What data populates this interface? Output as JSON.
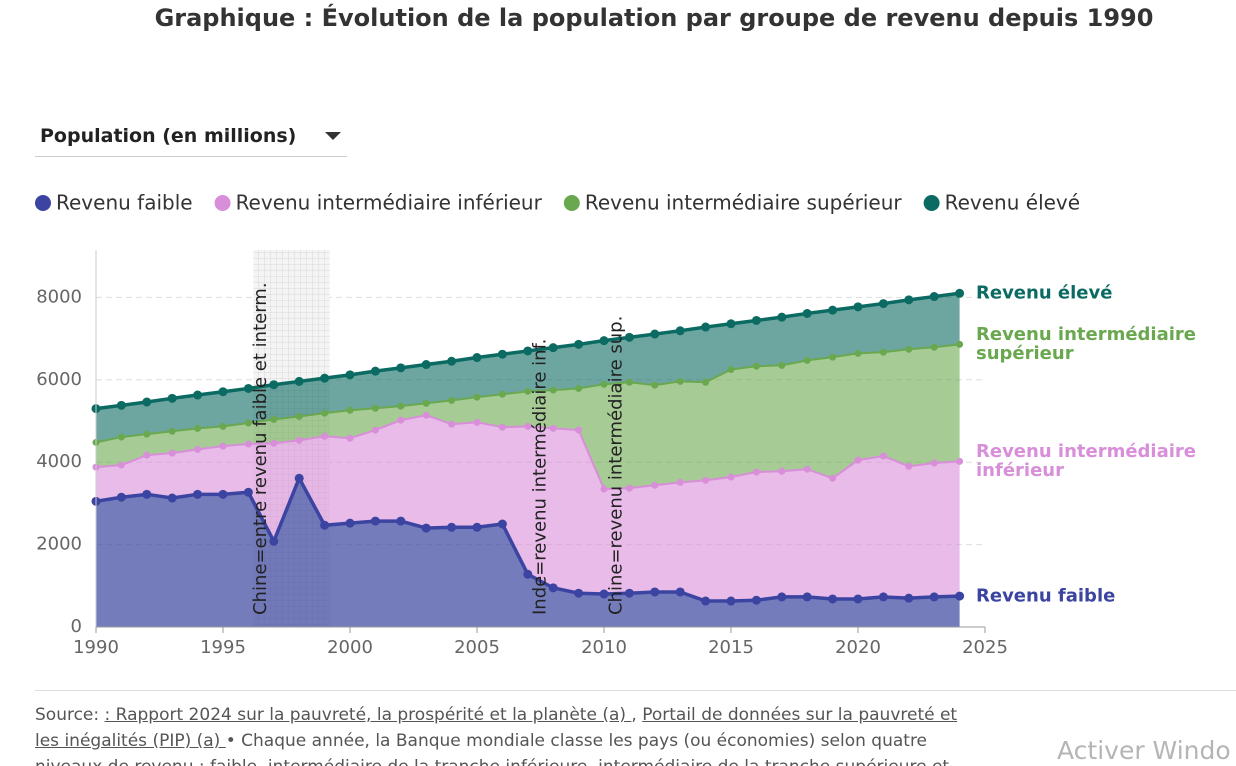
{
  "chart_data": {
    "type": "stacked-area",
    "title": "Graphique : Évolution de la population par groupe de revenu depuis 1990",
    "selector": "Population (en millions)",
    "x": [
      1990,
      1991,
      1992,
      1993,
      1994,
      1995,
      1996,
      1997,
      1998,
      1999,
      2000,
      2001,
      2002,
      2003,
      2004,
      2005,
      2006,
      2007,
      2008,
      2009,
      2010,
      2011,
      2012,
      2013,
      2014,
      2015,
      2016,
      2017,
      2018,
      2019,
      2020,
      2021,
      2022,
      2023,
      2024
    ],
    "series": [
      {
        "name": "Revenu faible",
        "color": "#3b44a0",
        "values": [
          3050,
          3150,
          3220,
          3130,
          3220,
          3220,
          3270,
          2080,
          3610,
          2470,
          2520,
          2570,
          2570,
          2400,
          2420,
          2420,
          2500,
          1280,
          950,
          820,
          800,
          820,
          850,
          850,
          630,
          630,
          650,
          730,
          730,
          680,
          680,
          730,
          700,
          730,
          750
        ]
      },
      {
        "name": "Revenu intermédiaire inférieur",
        "color": "#d98ed9",
        "values": [
          830,
          780,
          950,
          1090,
          1090,
          1170,
          1170,
          2380,
          920,
          2160,
          2060,
          2210,
          2450,
          2740,
          2500,
          2550,
          2350,
          3590,
          3870,
          3960,
          2550,
          2550,
          2590,
          2660,
          2930,
          3010,
          3110,
          3050,
          3100,
          2930,
          3370,
          3420,
          3200,
          3250,
          3270
        ]
      },
      {
        "name": "Revenu intermédiaire supérieur",
        "color": "#6aa84f",
        "values": [
          600,
          680,
          510,
          530,
          510,
          480,
          510,
          580,
          580,
          560,
          680,
          530,
          340,
          290,
          580,
          610,
          800,
          850,
          930,
          1010,
          2540,
          2570,
          2430,
          2450,
          2380,
          2610,
          2570,
          2570,
          2640,
          2940,
          2590,
          2520,
          2840,
          2810,
          2840
        ]
      },
      {
        "name": "Revenu élevé",
        "color": "#0b6b63",
        "values": [
          820,
          770,
          780,
          800,
          810,
          840,
          840,
          840,
          850,
          850,
          860,
          900,
          930,
          940,
          950,
          960,
          970,
          980,
          1030,
          1070,
          1060,
          1090,
          1240,
          1230,
          1340,
          1110,
          1110,
          1170,
          1140,
          1140,
          1130,
          1180,
          1200,
          1230,
          1240
        ]
      }
    ],
    "xlim": [
      1990,
      2025
    ],
    "xticks": [
      1990,
      1995,
      2000,
      2005,
      2010,
      2015,
      2020,
      2025
    ],
    "ylim": [
      0,
      9150
    ],
    "yticks": [
      0,
      2000,
      4000,
      6000,
      8000
    ],
    "grid": true,
    "annotations": [
      {
        "text": "Chine=entre revenu faible et interm.",
        "x": 1996.5,
        "band": [
          1996.2,
          1999.2
        ]
      },
      {
        "text": "Inde=revenu intermédiaire inf.",
        "x": 2007.5
      },
      {
        "text": "Chine=revenu intermédiaire sup.",
        "x": 2010.5
      }
    ]
  },
  "footer": {
    "source_label": "Source:",
    "links": [
      ": Rapport 2024 sur la pauvreté, la prospérité et la planète (a) ",
      "Portail de données sur la pauvreté et les inégalités (PIP) (a) "
    ],
    "separator": ",",
    "description": "• Chaque année, la Banque mondiale classe les pays (ou économies) selon quatre niveaux de revenu : faible, intermédiaire de la tranche inférieure, intermédiaire de la tranche supérieure et"
  },
  "watermark": "Activer Windo"
}
